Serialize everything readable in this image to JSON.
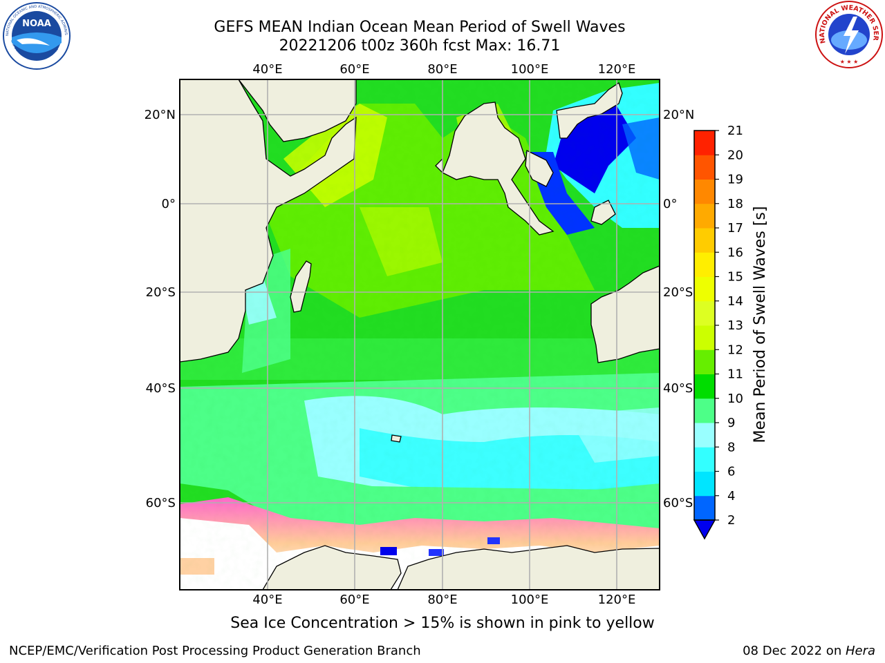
{
  "header": {
    "title_line1": "GEFS MEAN Indian Ocean Mean Period of Swell Waves",
    "title_line2": "20221206 t00z 360h fcst   Max: 16.71"
  },
  "logos": {
    "left": {
      "icon": "noaa-logo-icon",
      "text_top": "NATIONAL OCEANIC AND ATMOSPHERIC ADMINISTRATION",
      "text_bottom": "U.S. DEPARTMENT OF COMMERCE",
      "center_text": "NOAA"
    },
    "right": {
      "icon": "nws-logo-icon",
      "text": "NATIONAL WEATHER SERVICE"
    }
  },
  "map": {
    "lon_ticks": [
      "40°E",
      "60°E",
      "80°E",
      "100°E",
      "120°E"
    ],
    "lat_ticks_left": [
      "20°N",
      "0°",
      "20°S",
      "40°S",
      "60°S"
    ],
    "lat_ticks_right": [
      "20°N",
      "0°",
      "20°S",
      "40°S",
      "60°S"
    ],
    "lon_values": [
      40,
      60,
      80,
      100,
      120
    ],
    "lat_values": [
      20,
      0,
      -20,
      -40,
      -60
    ],
    "colors": {
      "land": "#efefde",
      "gridline": "#b0b0b0",
      "ice": "#ffffff"
    }
  },
  "colorbar": {
    "label": "Mean Period of Swell Waves [s]",
    "ticks": [
      "2",
      "4",
      "6",
      "8",
      "9",
      "10",
      "11",
      "12",
      "13",
      "14",
      "15",
      "16",
      "17",
      "18",
      "19",
      "20",
      "21"
    ],
    "colors": [
      "#0066ff",
      "#00e5ff",
      "#33ffff",
      "#99ffff",
      "#4dff88",
      "#00dd00",
      "#66ee00",
      "#ccff00",
      "#ddff22",
      "#eeff00",
      "#ffee00",
      "#ffcc00",
      "#ffaa00",
      "#ff8800",
      "#ff5500",
      "#ff2200"
    ],
    "under_color": "#0000ee"
  },
  "caption": "Sea Ice Concentration > 15% is shown in pink to yellow",
  "footer": {
    "left": "NCEP/EMC/Verification Post Processing Product Generation Branch",
    "right_prefix": "08 Dec 2022 on ",
    "right_italic": "Hera"
  }
}
